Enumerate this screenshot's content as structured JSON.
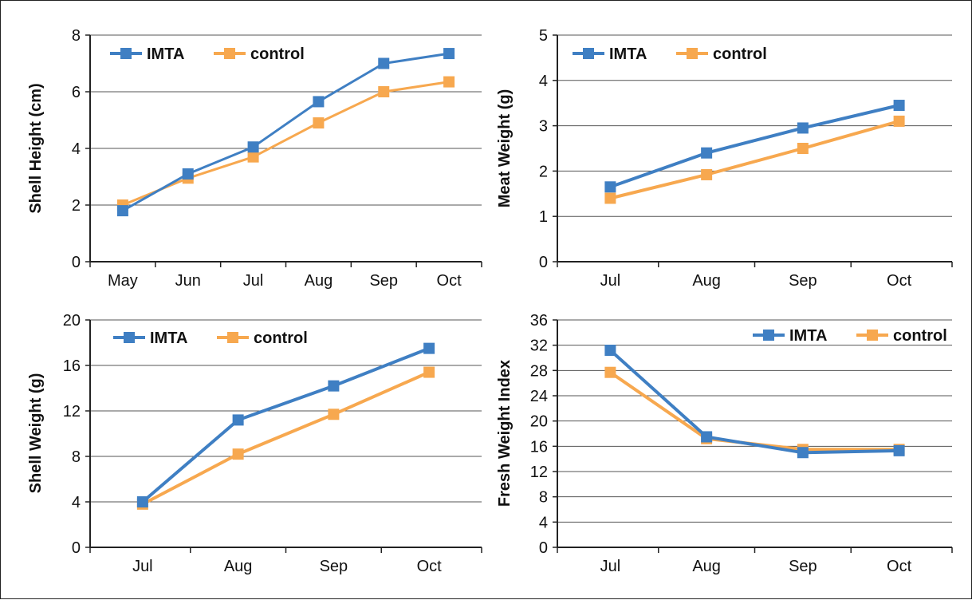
{
  "colors": {
    "imta": "#3F7FC3",
    "control": "#F7A84F",
    "grid": "#555555",
    "axis": "#222222"
  },
  "chart_data": [
    {
      "type": "line",
      "ylabel": "Shell Height (cm)",
      "categories": [
        "May",
        "Jun",
        "Jul",
        "Aug",
        "Sep",
        "Oct"
      ],
      "x": [
        5,
        6,
        7,
        8,
        9,
        10
      ],
      "xlim": [
        4.5,
        10.5
      ],
      "ylim": [
        0,
        8
      ],
      "yticks": [
        0,
        2,
        4,
        6,
        8
      ],
      "ytick_labels": [
        "0",
        "2",
        "4",
        "6",
        "8"
      ],
      "grid": true,
      "legend": "top-left",
      "series": [
        {
          "name": "IMTA",
          "color": "#3F7FC3",
          "values": [
            1.8,
            3.1,
            4.05,
            5.65,
            7.0,
            7.35
          ]
        },
        {
          "name": "control",
          "color": "#F7A84F",
          "values": [
            2.0,
            2.95,
            3.7,
            4.9,
            6.0,
            6.35
          ]
        }
      ]
    },
    {
      "type": "line",
      "ylabel": "Meat Weight (g)",
      "categories": [
        "Jul",
        "Aug",
        "Sep",
        "Oct"
      ],
      "x": [
        7,
        8,
        9,
        10
      ],
      "xlim": [
        6.45,
        10.55
      ],
      "ylim": [
        0,
        5
      ],
      "yticks": [
        0,
        1,
        2,
        3,
        4,
        5
      ],
      "ytick_labels": [
        "0",
        "1",
        "2",
        "3",
        "4",
        "5"
      ],
      "grid": true,
      "legend": "top-left",
      "series": [
        {
          "name": "IMTA",
          "color": "#3F7FC3",
          "values": [
            1.65,
            2.4,
            2.95,
            3.45
          ]
        },
        {
          "name": "control",
          "color": "#F7A84F",
          "values": [
            1.4,
            1.92,
            2.5,
            3.1
          ]
        }
      ]
    },
    {
      "type": "line",
      "ylabel": "Shell Weight (g)",
      "categories": [
        "Jul",
        "Aug",
        "Sep",
        "Oct"
      ],
      "x": [
        7,
        8,
        9,
        10
      ],
      "xlim": [
        6.45,
        10.55
      ],
      "ylim": [
        0,
        20
      ],
      "yticks": [
        0,
        4,
        8,
        12,
        16,
        20
      ],
      "ytick_labels": [
        "0",
        "4",
        "8",
        "12",
        "16",
        "20"
      ],
      "grid": true,
      "legend": "top-left",
      "series": [
        {
          "name": "IMTA",
          "color": "#3F7FC3",
          "values": [
            4.0,
            11.2,
            14.2,
            17.5
          ]
        },
        {
          "name": "control",
          "color": "#F7A84F",
          "values": [
            3.8,
            8.2,
            11.7,
            15.4
          ]
        }
      ]
    },
    {
      "type": "line",
      "ylabel": "Fresh Weight Index",
      "categories": [
        "Jul",
        "Aug",
        "Sep",
        "Oct"
      ],
      "x": [
        7,
        8,
        9,
        10
      ],
      "xlim": [
        6.45,
        10.55
      ],
      "ylim": [
        0,
        36
      ],
      "yticks": [
        0,
        4,
        8,
        12,
        16,
        20,
        24,
        28,
        32,
        36
      ],
      "ytick_labels": [
        "0",
        "4",
        "8",
        "12",
        "16",
        "20",
        "24",
        "28",
        "32",
        "36"
      ],
      "grid": true,
      "legend": "top-right",
      "series": [
        {
          "name": "IMTA",
          "color": "#3F7FC3",
          "values": [
            31.2,
            17.5,
            15.0,
            15.3
          ]
        },
        {
          "name": "control",
          "color": "#F7A84F",
          "values": [
            27.7,
            17.2,
            15.5,
            15.5
          ]
        }
      ]
    }
  ]
}
